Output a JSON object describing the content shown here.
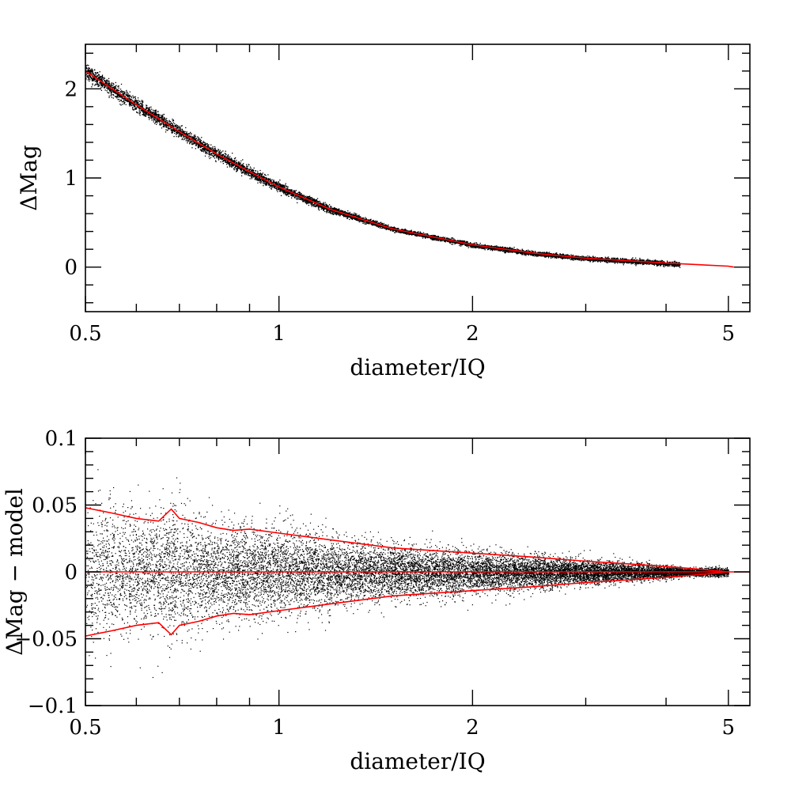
{
  "chart_data": [
    {
      "id": "top",
      "type": "scatter",
      "xscale": "log",
      "xlim": [
        0.5,
        5.4
      ],
      "ylim": [
        -0.5,
        2.5
      ],
      "xlabel": "diameter/IQ",
      "ylabel": "ΔMag",
      "xticks_major": [
        0.5,
        1,
        2,
        5
      ],
      "xtick_labels": [
        "0.5",
        "1",
        "2",
        "5"
      ],
      "xticks_minor": [
        0.6,
        0.7,
        0.8,
        0.9,
        3,
        4
      ],
      "yticks_major": [
        0,
        1,
        2
      ],
      "ytick_labels": [
        "0",
        "1",
        "2"
      ],
      "yticks_minor": [
        -0.4,
        -0.2,
        0.2,
        0.4,
        0.6,
        0.8,
        1.2,
        1.4,
        1.6,
        1.8,
        2.2,
        2.4
      ],
      "grid": false,
      "model_curve": {
        "color": "#ff0000",
        "x": [
          0.5,
          0.6,
          0.7,
          0.8,
          0.9,
          1.0,
          1.2,
          1.5,
          2.0,
          2.5,
          3.0,
          4.0,
          5.0,
          5.1
        ],
        "y": [
          2.2,
          1.82,
          1.52,
          1.27,
          1.07,
          0.9,
          0.65,
          0.43,
          0.25,
          0.155,
          0.1,
          0.045,
          0.01,
          0.0
        ]
      },
      "scatter_color": "#000000"
    },
    {
      "id": "bottom",
      "type": "scatter",
      "xscale": "log",
      "xlim": [
        0.5,
        5.4
      ],
      "ylim": [
        -0.1,
        0.1
      ],
      "xlabel": "diameter/IQ",
      "ylabel": "ΔMag − model",
      "xticks_major": [
        0.5,
        1,
        2,
        5
      ],
      "xtick_labels": [
        "0.5",
        "1",
        "2",
        "5"
      ],
      "xticks_minor": [
        0.6,
        0.7,
        0.8,
        0.9,
        3,
        4
      ],
      "yticks_major": [
        -0.1,
        -0.05,
        0,
        0.05,
        0.1
      ],
      "ytick_labels": [
        "−0.1",
        "−0.05",
        "0",
        "0.05",
        "0.1"
      ],
      "yticks_minor": [
        -0.09,
        -0.08,
        -0.07,
        -0.06,
        -0.04,
        -0.03,
        -0.02,
        -0.01,
        0.01,
        0.02,
        0.03,
        0.04,
        0.06,
        0.07,
        0.08,
        0.09
      ],
      "grid": false,
      "zero_line": {
        "y": 0,
        "color": "#ff0000"
      },
      "envelope": {
        "color": "#ff0000",
        "x": [
          0.5,
          0.55,
          0.6,
          0.65,
          0.68,
          0.7,
          0.75,
          0.8,
          0.85,
          0.9,
          1.0,
          1.2,
          1.5,
          2.0,
          2.5,
          3.0,
          3.5,
          4.0,
          4.5,
          5.0
        ],
        "upper": [
          0.048,
          0.044,
          0.04,
          0.038,
          0.047,
          0.04,
          0.037,
          0.033,
          0.031,
          0.032,
          0.029,
          0.024,
          0.018,
          0.014,
          0.011,
          0.008,
          0.006,
          0.004,
          0.002,
          0.0
        ],
        "lower": [
          -0.048,
          -0.044,
          -0.04,
          -0.038,
          -0.047,
          -0.04,
          -0.037,
          -0.033,
          -0.031,
          -0.032,
          -0.029,
          -0.024,
          -0.018,
          -0.014,
          -0.011,
          -0.008,
          -0.006,
          -0.004,
          -0.002,
          0.0
        ]
      },
      "scatter_color": "#000000"
    }
  ]
}
